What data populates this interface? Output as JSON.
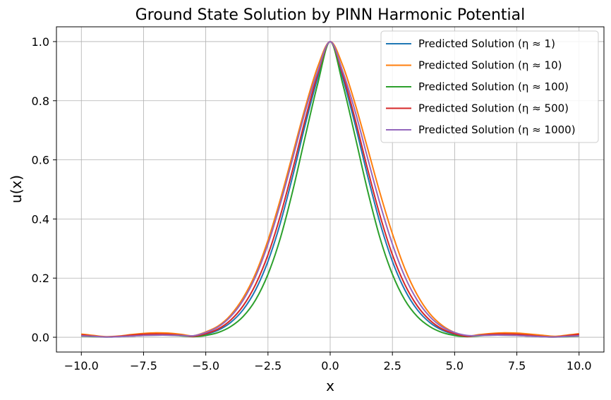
{
  "chart_data": {
    "type": "line",
    "title": "Ground State Solution by PINN Harmonic Potential",
    "xlabel": "x",
    "ylabel": "u(x)",
    "xlim": [
      -11.0,
      11.0
    ],
    "ylim": [
      -0.05,
      1.05
    ],
    "xticks": [
      -10.0,
      -7.5,
      -5.0,
      -2.5,
      0.0,
      2.5,
      5.0,
      7.5,
      10.0
    ],
    "xtick_labels": [
      "−10.0",
      "−7.5",
      "−5.0",
      "−2.5",
      "0.0",
      "2.5",
      "5.0",
      "7.5",
      "10.0"
    ],
    "yticks": [
      0.0,
      0.2,
      0.4,
      0.6,
      0.8,
      1.0
    ],
    "ytick_labels": [
      "0.0",
      "0.2",
      "0.4",
      "0.6",
      "0.8",
      "1.0"
    ],
    "grid": true,
    "legend_position": "top-right",
    "x": [
      -10,
      -9.5,
      -9,
      -8.5,
      -8,
      -7.5,
      -7,
      -6.5,
      -6,
      -5.5,
      -5,
      -4.5,
      -4,
      -3.5,
      -3,
      -2.5,
      -2,
      -1.5,
      -1,
      -0.5,
      0,
      0.5,
      1,
      1.5,
      2,
      2.5,
      3,
      3.5,
      4,
      4.5,
      5,
      5.5,
      6,
      6.5,
      7,
      7.5,
      8,
      8.5,
      9,
      9.5,
      10
    ],
    "series": [
      {
        "name": "Predicted Solution (η ≈ 1)",
        "color": "#1f77b4",
        "values": [
          0.006,
          0.003,
          0.001,
          0.002,
          0.005,
          0.007,
          0.008,
          0.008,
          0.006,
          0.004,
          0.01,
          0.024,
          0.05,
          0.093,
          0.16,
          0.257,
          0.387,
          0.547,
          0.72,
          0.878,
          1.0,
          0.878,
          0.72,
          0.547,
          0.387,
          0.257,
          0.16,
          0.093,
          0.05,
          0.024,
          0.01,
          0.004,
          0.006,
          0.008,
          0.008,
          0.007,
          0.005,
          0.002,
          0.001,
          0.003,
          0.006
        ]
      },
      {
        "name": "Predicted Solution (η ≈ 10)",
        "color": "#ff7f0e",
        "values": [
          0.011,
          0.006,
          0.002,
          0.004,
          0.009,
          0.013,
          0.015,
          0.014,
          0.01,
          0.005,
          0.018,
          0.038,
          0.075,
          0.133,
          0.215,
          0.328,
          0.467,
          0.622,
          0.778,
          0.915,
          1.0,
          0.92,
          0.79,
          0.64,
          0.488,
          0.35,
          0.232,
          0.143,
          0.08,
          0.04,
          0.016,
          0.004,
          0.009,
          0.013,
          0.015,
          0.014,
          0.011,
          0.007,
          0.003,
          0.007,
          0.012
        ]
      },
      {
        "name": "Predicted Solution (η ≈ 100)",
        "color": "#2ca02c",
        "values": [
          0.004,
          0.002,
          0.001,
          0.002,
          0.004,
          0.006,
          0.007,
          0.007,
          0.005,
          0.002,
          0.006,
          0.016,
          0.036,
          0.07,
          0.126,
          0.213,
          0.336,
          0.497,
          0.68,
          0.858,
          1.0,
          0.858,
          0.68,
          0.497,
          0.336,
          0.213,
          0.126,
          0.07,
          0.036,
          0.016,
          0.006,
          0.002,
          0.005,
          0.007,
          0.007,
          0.006,
          0.004,
          0.002,
          0.001,
          0.002,
          0.004
        ]
      },
      {
        "name": "Predicted Solution (η ≈ 500)",
        "color": "#d62728",
        "values": [
          0.008,
          0.004,
          0.001,
          0.003,
          0.007,
          0.01,
          0.011,
          0.01,
          0.007,
          0.003,
          0.012,
          0.028,
          0.058,
          0.106,
          0.178,
          0.279,
          0.412,
          0.57,
          0.738,
          0.89,
          1.0,
          0.89,
          0.738,
          0.57,
          0.412,
          0.279,
          0.178,
          0.106,
          0.058,
          0.028,
          0.012,
          0.003,
          0.007,
          0.01,
          0.011,
          0.01,
          0.007,
          0.003,
          0.001,
          0.005,
          0.01
        ]
      },
      {
        "name": "Predicted Solution (η ≈ 1000)",
        "color": "#9467bd",
        "values": [
          0.005,
          0.003,
          0.001,
          0.002,
          0.004,
          0.006,
          0.007,
          0.007,
          0.006,
          0.005,
          0.016,
          0.035,
          0.07,
          0.125,
          0.205,
          0.315,
          0.452,
          0.607,
          0.765,
          0.9,
          1.0,
          0.9,
          0.765,
          0.607,
          0.452,
          0.315,
          0.205,
          0.125,
          0.07,
          0.035,
          0.016,
          0.006,
          0.006,
          0.007,
          0.007,
          0.006,
          0.004,
          0.002,
          0.001,
          0.003,
          0.005
        ]
      }
    ]
  }
}
